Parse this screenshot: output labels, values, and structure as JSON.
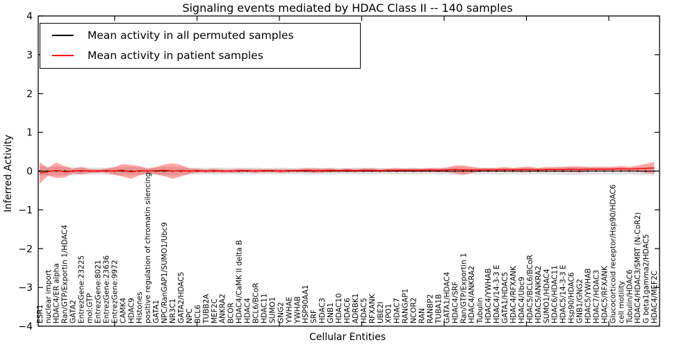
{
  "chart_data": {
    "type": "line",
    "title": "Signaling events mediated by HDAC Class II -- 140 samples",
    "xlabel": "Cellular Entities",
    "ylabel": "Inferred Activity",
    "ylim": [
      -4,
      4
    ],
    "yticks": [
      "4",
      "3",
      "2",
      "1",
      "0",
      "−1",
      "−2",
      "−3",
      "−4"
    ],
    "ytick_values": [
      4,
      3,
      2,
      1,
      0,
      -1,
      -2,
      -3,
      -4
    ],
    "grid": false,
    "legend_position": "upper left",
    "colors": {
      "permuted_line": "#000000",
      "patient_line": "#ff0000",
      "permuted_band": "#e0e0e0",
      "patient_band_fill": "#ff0000",
      "patient_band_opacity": 0.35,
      "axis": "#000000"
    },
    "categories": [
      "ESR1",
      "nuclear import",
      "HDAC4/ER alpha",
      "Ran/GTP/Exportin 1/HDAC4",
      "GATA2",
      "EntrezGene:23225",
      "mol:GTP",
      "EntrezGene:8021",
      "EntrezGene:23636",
      "EntrezGene:9972",
      "CAMK4",
      "HDAC9",
      "Histones",
      "positive regulation of chromatin silencing",
      "GATA1",
      "NPC/RanGAP1/SUMO1/Ubc9",
      "NR3C1",
      "GATA2/HDAC5",
      "NPC",
      "BCL6",
      "TUBB2A",
      "MEF2C",
      "ANKRA2",
      "BCOR",
      "HDAC4/CaMK II delta B",
      "HDAC4",
      "BCL6/BCoR",
      "HDAC11",
      "SUMO1",
      "GNG2",
      "YWHAE",
      "YWHAB",
      "HSP90AA1",
      "SRF",
      "HDAC3",
      "GNB1",
      "HDAC10",
      "HDAC6",
      "ADRBK1",
      "HDAC5",
      "RFXANK",
      "UBE2I",
      "XPO1",
      "HDAC7",
      "RANGAP1",
      "NCOR2",
      "RAN",
      "RANBP2",
      "TUBA1B",
      "GATA1/HDAC4",
      "HDAC4/SRF",
      "Ran/GTP/Exportin 1",
      "HDAC4/ANKRA2",
      "Tubulin",
      "HDAC4/YWHAB",
      "HDAC4/14-3-3 E",
      "GATA1/HDAC5",
      "HDAC4/RFXANK",
      "HDAC4/Ubc9",
      "HDAC5/BCL6/BCoR",
      "HDAC5/ANKRA2",
      "SUMO1/HDAC4",
      "HDAC6/HDAC11",
      "HDAC5/14-3-3 E",
      "Hsp90/HDAC6",
      "GNB1/GNG2",
      "HDAC5/YWHAB",
      "HDAC7/HDAC3",
      "HDAC5/RFXANK",
      "Glucocorticoid receptor/Hsp90/HDAC6",
      "cell motility",
      "Tubulin/HDAC6",
      "HDAC4/HDAC3/SMRT (N-CoR2)",
      "G beta1gamma2/HDAC5",
      "HDAC4/MEF2C"
    ],
    "series": [
      {
        "name": "Mean activity in all permuted samples",
        "values": [
          0,
          0,
          0,
          0,
          0,
          0,
          0,
          0,
          0,
          0,
          0,
          0,
          0,
          0,
          0,
          0,
          0,
          0,
          0,
          0,
          0,
          0,
          0,
          0,
          0,
          0,
          0,
          0,
          0,
          0,
          0,
          0,
          0,
          0,
          0,
          0,
          0,
          0,
          0,
          0,
          0,
          0,
          0,
          0,
          0,
          0,
          0,
          0,
          0,
          0,
          0,
          0,
          0,
          0,
          0,
          0,
          0,
          0,
          0,
          0,
          0,
          0,
          0,
          0,
          0,
          0,
          0,
          0,
          0,
          0,
          0,
          0,
          0,
          0,
          0
        ],
        "band": [
          0.13,
          0.11,
          0.12,
          0.11,
          0.1,
          0.1,
          0.09,
          0.09,
          0.09,
          0.1,
          0.11,
          0.11,
          0.1,
          0.09,
          0.1,
          0.11,
          0.11,
          0.1,
          0.09,
          0.09,
          0.08,
          0.09,
          0.09,
          0.08,
          0.09,
          0.08,
          0.09,
          0.08,
          0.08,
          0.09,
          0.08,
          0.08,
          0.09,
          0.09,
          0.08,
          0.09,
          0.08,
          0.08,
          0.09,
          0.08,
          0.09,
          0.08,
          0.08,
          0.09,
          0.08,
          0.09,
          0.08,
          0.08,
          0.09,
          0.09,
          0.1,
          0.1,
          0.09,
          0.09,
          0.08,
          0.09,
          0.09,
          0.08,
          0.09,
          0.09,
          0.08,
          0.09,
          0.09,
          0.1,
          0.1,
          0.1,
          0.09,
          0.09,
          0.09,
          0.09,
          0.09,
          0.09,
          0.1,
          0.1,
          0.11
        ]
      },
      {
        "name": "Mean activity in patient samples",
        "values": [
          -0.05,
          -0.02,
          0.02,
          -0.02,
          0.0,
          0.01,
          0.0,
          0.0,
          0.01,
          0.0,
          0.02,
          -0.02,
          0.01,
          0.0,
          0.01,
          0.02,
          0.0,
          0.01,
          0.0,
          0.01,
          0.0,
          0.01,
          0.0,
          0.0,
          0.01,
          0.01,
          0.0,
          0.01,
          0.01,
          0.0,
          0.01,
          0.01,
          0.02,
          0.01,
          0.01,
          0.02,
          0.01,
          0.02,
          0.01,
          0.02,
          0.02,
          0.01,
          0.02,
          0.02,
          0.02,
          0.02,
          0.02,
          0.03,
          0.02,
          0.03,
          0.04,
          0.03,
          0.03,
          0.03,
          0.03,
          0.03,
          0.04,
          0.03,
          0.04,
          0.04,
          0.03,
          0.04,
          0.04,
          0.04,
          0.05,
          0.04,
          0.05,
          0.05,
          0.05,
          0.05,
          0.06,
          0.05,
          0.06,
          0.07,
          0.08
        ],
        "band": [
          0.28,
          0.1,
          0.2,
          0.15,
          0.06,
          0.09,
          0.05,
          0.04,
          0.05,
          0.1,
          0.16,
          0.18,
          0.12,
          0.06,
          0.09,
          0.15,
          0.2,
          0.15,
          0.07,
          0.05,
          0.04,
          0.05,
          0.04,
          0.04,
          0.05,
          0.04,
          0.05,
          0.04,
          0.04,
          0.05,
          0.04,
          0.04,
          0.05,
          0.06,
          0.05,
          0.05,
          0.04,
          0.05,
          0.04,
          0.05,
          0.05,
          0.04,
          0.04,
          0.05,
          0.04,
          0.05,
          0.04,
          0.05,
          0.05,
          0.06,
          0.1,
          0.12,
          0.08,
          0.05,
          0.05,
          0.05,
          0.06,
          0.05,
          0.06,
          0.07,
          0.05,
          0.06,
          0.06,
          0.07,
          0.07,
          0.08,
          0.06,
          0.06,
          0.06,
          0.06,
          0.07,
          0.06,
          0.08,
          0.12,
          0.15
        ]
      }
    ]
  }
}
